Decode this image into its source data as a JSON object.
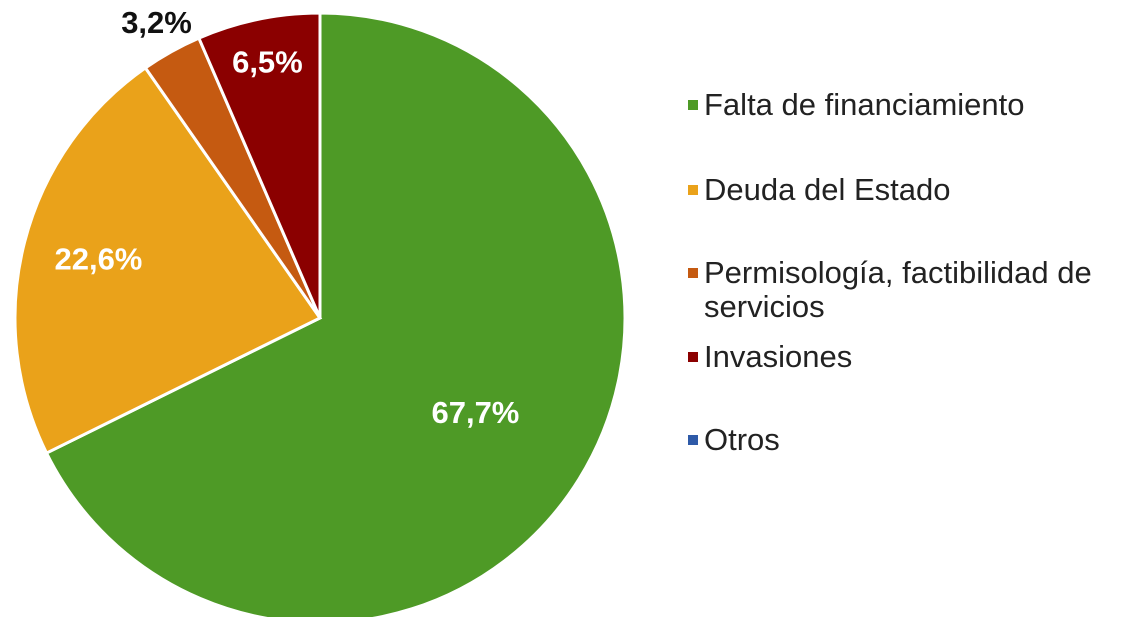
{
  "chart_data": {
    "type": "pie",
    "categories": [
      "Falta de financiamiento",
      "Deuda del Estado",
      "Permisología, factibilidad de servicios",
      "Invasiones",
      "Otros"
    ],
    "values": [
      67.7,
      22.6,
      3.2,
      6.5,
      0
    ],
    "value_labels": [
      "67,7%",
      "22,6%",
      "3,2%",
      "6,5%",
      null
    ],
    "colors": [
      "#4e9a26",
      "#eaa21a",
      "#c55a11",
      "#8b0000",
      "#2e5aa8"
    ],
    "legend": "right"
  }
}
